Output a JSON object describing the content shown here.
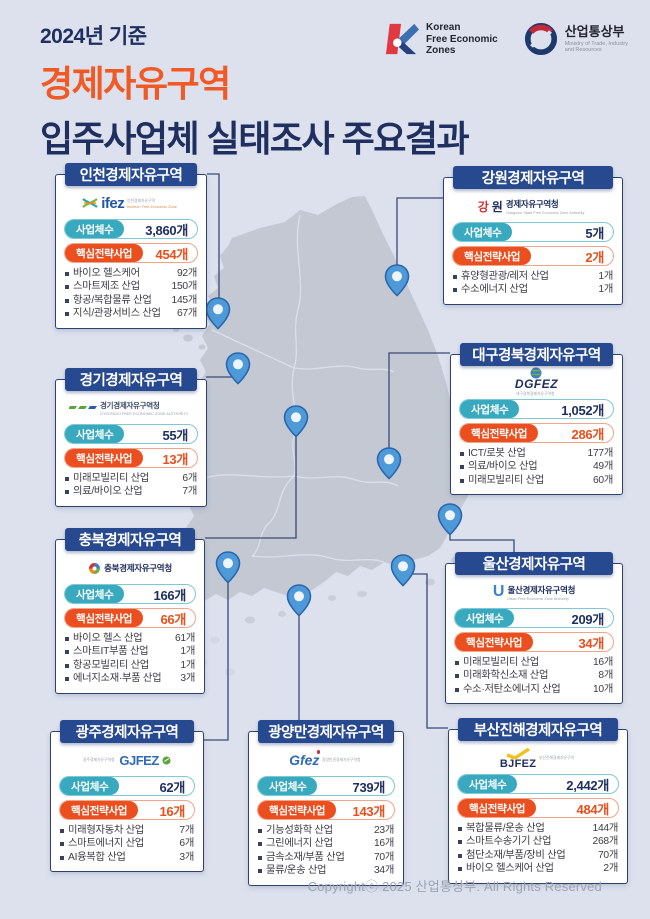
{
  "header": {
    "eyebrow": "2024년 기준",
    "title_orange": "경제자유구역",
    "title_navy": "입주사업체 실태조사 주요결과",
    "kfez": {
      "line1": "Korean",
      "line2": "Free Economic",
      "line3": "Zones"
    },
    "motie": {
      "name": "산업통상부",
      "sub1": "Ministry of Trade, Industry",
      "sub2": "and Resources"
    }
  },
  "labels": {
    "business_count": "사업체수",
    "core_strategy": "핵심전략사업"
  },
  "footer": {
    "copyright": "Copyrightⓒ 2025 산업통상부. All Rights Reserved"
  },
  "colors": {
    "background": "#dce1ed",
    "navy": "#1e2f60",
    "ribbon_navy": "#27498f",
    "accent_orange": "#f15a24",
    "pill_teal": "#38a9bf",
    "pill_orange": "#ec4f1f",
    "value_orange": "#e94e1b",
    "map_gray": "#c3c8d3",
    "pin_blue": "#4e9ad9"
  },
  "zones": [
    {
      "id": "incheon",
      "name": "인천경제자유구역",
      "logo": {
        "word": "ifez",
        "text": "인천경제자유구역",
        "sub": "Incheon Free Economic Zone"
      },
      "business_count": "3,860개",
      "core_count": "454개",
      "industries": [
        {
          "name": "바이오 헬스케어",
          "count": "92개"
        },
        {
          "name": "스마트제조 산업",
          "count": "150개"
        },
        {
          "name": "항공/복합물류 산업",
          "count": "145개"
        },
        {
          "name": "지식/관광서비스 산업",
          "count": "67개"
        }
      ]
    },
    {
      "id": "gangwon",
      "name": "강원경제자유구역",
      "logo": {
        "word1": "강",
        "word2": "원",
        "text": "경제자유구역청",
        "sub": "Gangwon State Free Economic Zone Authority"
      },
      "business_count": "5개",
      "core_count": "2개",
      "industries": [
        {
          "name": "휴양형관광/레저 산업",
          "count": "1개"
        },
        {
          "name": "수소에너지 산업",
          "count": "1개"
        }
      ]
    },
    {
      "id": "gyeonggi",
      "name": "경기경제자유구역",
      "logo": {
        "text": "경기경제자유구역청",
        "sub": "GYEONGGI FREE ECONOMIC ZONE AUTHORITY"
      },
      "business_count": "55개",
      "core_count": "13개",
      "industries": [
        {
          "name": "미래모빌리티 산업",
          "count": "6개"
        },
        {
          "name": "의료/바이오 산업",
          "count": "7개"
        }
      ]
    },
    {
      "id": "daegu",
      "name": "대구경북경제자유구역",
      "logo": {
        "word": "DGFEZ",
        "sub": "대구경북경제자유구역청"
      },
      "business_count": "1,052개",
      "core_count": "286개",
      "industries": [
        {
          "name": "ICT/로봇 산업",
          "count": "177개"
        },
        {
          "name": "의료/바이오 산업",
          "count": "49개"
        },
        {
          "name": "미래모빌리티 산업",
          "count": "60개"
        }
      ]
    },
    {
      "id": "chungbuk",
      "name": "충북경제자유구역",
      "logo": {
        "text": "충북경제자유구역청"
      },
      "business_count": "166개",
      "core_count": "66개",
      "industries": [
        {
          "name": "바이오 헬스 산업",
          "count": "61개"
        },
        {
          "name": "스마트IT부품 산업",
          "count": "1개"
        },
        {
          "name": "항공모빌리티 산업",
          "count": "1개"
        },
        {
          "name": "에너지소재·부품 산업",
          "count": "3개"
        }
      ]
    },
    {
      "id": "ulsan",
      "name": "울산경제자유구역",
      "logo": {
        "word": "U",
        "text": "울산경제자유구역청",
        "sub": "Ulsan Free Economic Zone Authority"
      },
      "business_count": "209개",
      "core_count": "34개",
      "industries": [
        {
          "name": "미래모빌리티 산업",
          "count": "16개"
        },
        {
          "name": "미래화학신소재 산업",
          "count": "8개"
        },
        {
          "name": "수소·저탄소에너지 산업",
          "count": "10개"
        }
      ]
    },
    {
      "id": "gwangju",
      "name": "광주경제자유구역",
      "logo": {
        "text": "광주경제자유구역청",
        "word": "GJFEZ"
      },
      "business_count": "62개",
      "core_count": "16개",
      "industries": [
        {
          "name": "미래형자동차 산업",
          "count": "7개"
        },
        {
          "name": "스마트에너지 산업",
          "count": "6개"
        },
        {
          "name": "AI융복합 산업",
          "count": "3개"
        }
      ]
    },
    {
      "id": "gwangyang",
      "name": "광양만경제자유구역",
      "logo": {
        "word": "Gfez",
        "text": "광양만권경제자유구역청"
      },
      "business_count": "739개",
      "core_count": "143개",
      "industries": [
        {
          "name": "기능성화학 산업",
          "count": "23개"
        },
        {
          "name": "그린에너지 산업",
          "count": "16개"
        },
        {
          "name": "금속소재/부품 산업",
          "count": "70개"
        },
        {
          "name": "물류/운송 산업",
          "count": "34개"
        }
      ]
    },
    {
      "id": "busan",
      "name": "부산진해경제자유구역",
      "logo": {
        "word": "BJFEZ",
        "text": "부산진해경제자유구역"
      },
      "business_count": "2,442개",
      "core_count": "484개",
      "industries": [
        {
          "name": "복합물류/운송 산업",
          "count": "144개"
        },
        {
          "name": "스마트수송기기 산업",
          "count": "268개"
        },
        {
          "name": "첨단소재/부품/장비 산업",
          "count": "70개"
        },
        {
          "name": "바이오 헬스케어 산업",
          "count": "2개"
        }
      ]
    }
  ]
}
